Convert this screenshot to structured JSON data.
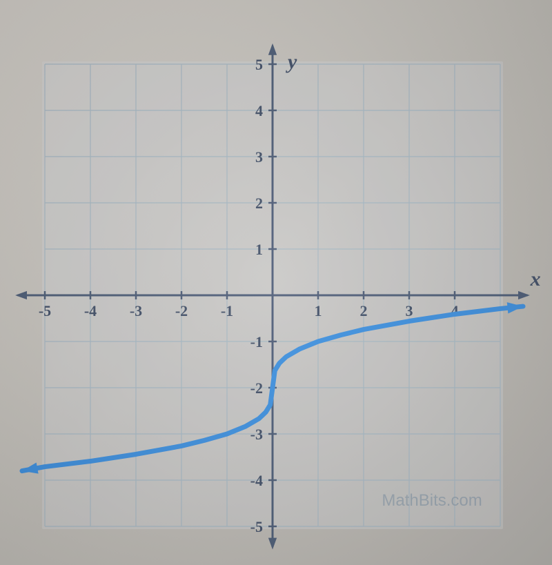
{
  "chart": {
    "type": "line",
    "axis_labels": {
      "x": "x",
      "y": "y"
    },
    "xlim": [
      -5.5,
      5.5
    ],
    "ylim": [
      -5.5,
      5.5
    ],
    "xtick_step": 1,
    "ytick_step": 1,
    "xticks": [
      -5,
      -4,
      -3,
      -2,
      -1,
      1,
      2,
      3,
      4
    ],
    "yticks": [
      -5,
      -4,
      -3,
      -2,
      -1,
      1,
      2,
      3,
      4,
      5
    ],
    "grid_color": "#a7b8c4",
    "axis_color": "#4a5a75",
    "tick_label_color": "#3f4d66",
    "tick_label_fontsize": 22,
    "axis_label_fontsize": 30,
    "background_color": "#d6dbe0",
    "curve_color": "#3a8fe0",
    "curve_width": 7,
    "arrow_on_curve_ends": true,
    "watermark": "MathBits.com",
    "watermark_color": "#93a1af",
    "curve_points": [
      [
        -5.5,
        -3.8
      ],
      [
        -5.0,
        -3.71
      ],
      [
        -4.0,
        -3.59
      ],
      [
        -3.0,
        -3.44
      ],
      [
        -2.0,
        -3.26
      ],
      [
        -1.5,
        -3.14
      ],
      [
        -1.0,
        -3.0
      ],
      [
        -0.6,
        -2.84
      ],
      [
        -0.3,
        -2.67
      ],
      [
        -0.15,
        -2.53
      ],
      [
        -0.05,
        -2.37
      ],
      [
        0.0,
        -2.0
      ],
      [
        0.05,
        -1.63
      ],
      [
        0.15,
        -1.47
      ],
      [
        0.3,
        -1.33
      ],
      [
        0.6,
        -1.16
      ],
      [
        1.0,
        -1.0
      ],
      [
        1.5,
        -0.86
      ],
      [
        2.0,
        -0.74
      ],
      [
        3.0,
        -0.56
      ],
      [
        4.0,
        -0.41
      ],
      [
        5.0,
        -0.29
      ],
      [
        5.5,
        -0.24
      ]
    ]
  }
}
